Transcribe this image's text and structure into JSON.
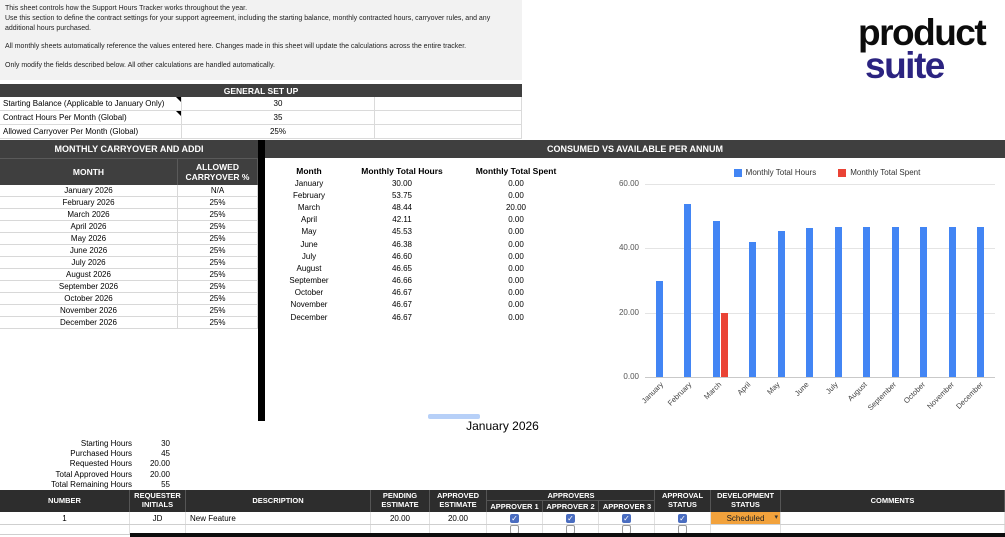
{
  "instructions": {
    "line1": "This sheet controls how the Support Hours Tracker works throughout the year.",
    "line2": "Use this section to define the contract settings for your support agreement, including the starting balance, monthly contracted hours, carryover rules, and any additional hours purchased.",
    "line3": "All monthly sheets automatically reference the values entered here. Changes made in this sheet will update the calculations across the entire tracker.",
    "line4": "Only modify the fields described below. All other calculations are handled automatically."
  },
  "logo": {
    "line1": "product",
    "line2": "suite"
  },
  "general_setup": {
    "title": "GENERAL SET UP",
    "rows": [
      {
        "label": "Starting Balance (Applicable to January Only)",
        "value": "30",
        "marker": true
      },
      {
        "label": "Contract Hours Per Month (Global)",
        "value": "35",
        "marker": true
      },
      {
        "label": "Allowed Carryover Per Month (Global)",
        "value": "25%",
        "marker": false
      }
    ]
  },
  "carryover_table": {
    "title": "MONTHLY CARRYOVER AND ADDI",
    "col_month": "MONTH",
    "col_pct": "ALLOWED CARRYOVER %",
    "rows": [
      {
        "month": "January 2026",
        "pct": "N/A"
      },
      {
        "month": "February 2026",
        "pct": "25%"
      },
      {
        "month": "March 2026",
        "pct": "25%"
      },
      {
        "month": "April 2026",
        "pct": "25%"
      },
      {
        "month": "May 2026",
        "pct": "25%"
      },
      {
        "month": "June 2026",
        "pct": "25%"
      },
      {
        "month": "July 2026",
        "pct": "25%"
      },
      {
        "month": "August 2026",
        "pct": "25%"
      },
      {
        "month": "September 2026",
        "pct": "25%"
      },
      {
        "month": "October 2026",
        "pct": "25%"
      },
      {
        "month": "November 2026",
        "pct": "25%"
      },
      {
        "month": "December 2026",
        "pct": "25%"
      }
    ]
  },
  "annual_panel": {
    "title": "CONSUMED VS AVAILABLE PER ANNUM",
    "headers": [
      "Month",
      "Monthly Total Hours",
      "Monthly Total Spent"
    ],
    "rows": [
      [
        "January",
        "30.00",
        "0.00"
      ],
      [
        "February",
        "53.75",
        "0.00"
      ],
      [
        "March",
        "48.44",
        "20.00"
      ],
      [
        "April",
        "42.11",
        "0.00"
      ],
      [
        "May",
        "45.53",
        "0.00"
      ],
      [
        "June",
        "46.38",
        "0.00"
      ],
      [
        "July",
        "46.60",
        "0.00"
      ],
      [
        "August",
        "46.65",
        "0.00"
      ],
      [
        "September",
        "46.66",
        "0.00"
      ],
      [
        "October",
        "46.67",
        "0.00"
      ],
      [
        "November",
        "46.67",
        "0.00"
      ],
      [
        "December",
        "46.67",
        "0.00"
      ]
    ]
  },
  "chart_data": {
    "type": "bar",
    "title": "CONSUMED VS AVAILABLE PER ANNUM",
    "categories": [
      "January",
      "February",
      "March",
      "April",
      "May",
      "June",
      "July",
      "August",
      "September",
      "October",
      "November",
      "December"
    ],
    "series": [
      {
        "name": "Monthly Total Hours",
        "color": "#4285f4",
        "values": [
          30.0,
          53.75,
          48.44,
          42.11,
          45.53,
          46.38,
          46.6,
          46.65,
          46.66,
          46.67,
          46.67,
          46.67
        ]
      },
      {
        "name": "Monthly Total Spent",
        "color": "#ea4335",
        "values": [
          0,
          0,
          20.0,
          0,
          0,
          0,
          0,
          0,
          0,
          0,
          0,
          0
        ]
      }
    ],
    "ylim": [
      0,
      60
    ],
    "yticks": [
      {
        "value": 0,
        "label": "0.00"
      },
      {
        "value": 20,
        "label": "20.00"
      },
      {
        "value": 40,
        "label": "40.00"
      },
      {
        "value": 60,
        "label": "60.00"
      }
    ],
    "legend_position": "top",
    "grid": true
  },
  "month_sheet": {
    "title": "January 2026",
    "summary": [
      {
        "label": "Starting Hours",
        "value": "30"
      },
      {
        "label": "Purchased Hours",
        "value": "45"
      },
      {
        "label": "Requested Hours",
        "value": "20.00"
      },
      {
        "label": "Total Approved Hours",
        "value": "20.00"
      },
      {
        "label": "Total Remaining Hours",
        "value": "55"
      }
    ],
    "table": {
      "headers": {
        "number": "NUMBER",
        "initials": "REQUESTER INITIALS",
        "description": "DESCRIPTION",
        "pending": "PENDING ESTIMATE",
        "approved": "APPROVED ESTIMATE",
        "approvers": "APPROVERS",
        "approver1": "APPROVER 1",
        "approver2": "APPROVER 2",
        "approver3": "APPROVER 3",
        "approval": "APPROVAL STATUS",
        "development": "DEVELOPMENT STATUS",
        "comments": "COMMENTS"
      },
      "rows": [
        {
          "number": "1",
          "initials": "JD",
          "description": "New Feature",
          "pending": "20.00",
          "approved": "20.00",
          "approver1": true,
          "approver2": true,
          "approver3": true,
          "approval": true,
          "development": "Scheduled",
          "comments": ""
        },
        {
          "number": "",
          "initials": "",
          "description": "",
          "pending": "",
          "approved": "",
          "approver1": false,
          "approver2": false,
          "approver3": false,
          "approval": false,
          "development": "",
          "comments": ""
        }
      ]
    }
  },
  "colors": {
    "header_dark": "#3f3f3f",
    "accent_blue": "#4285f4",
    "accent_red": "#ea4335",
    "chip_orange": "#f2a23c",
    "logo_navy": "#2b2380",
    "checkbox_blue": "#4a6dc0",
    "scroll_blue": "#b7d0f8",
    "bottom_header": "#2d2d2d"
  }
}
